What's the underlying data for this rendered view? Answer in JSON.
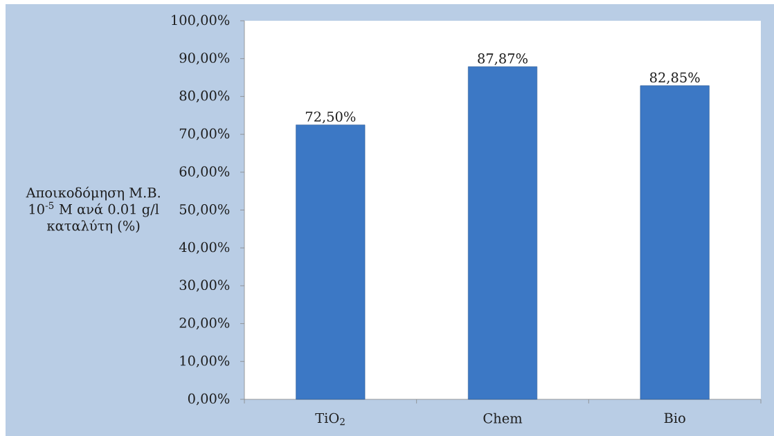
{
  "chart_data": {
    "type": "bar",
    "categories": [
      "TiO$_{2}$",
      "Chem",
      "Bio"
    ],
    "values": [
      72.5,
      87.87,
      82.85
    ],
    "value_labels": [
      "72,50%",
      "87,87%",
      "82,85%"
    ],
    "color": "#3c78c5",
    "ylabel": "Αποικοδόμηση Μ.Β. 10$^{-5}$ M ανά 0.01 g/l καταλύτη (%)",
    "ylim": [
      0,
      100
    ],
    "yticks": [
      {
        "value": 0,
        "label": "0,00%"
      },
      {
        "value": 10,
        "label": "10,00%"
      },
      {
        "value": 20,
        "label": "20,00%"
      },
      {
        "value": 30,
        "label": "30,00%"
      },
      {
        "value": 40,
        "label": "40,00%"
      },
      {
        "value": 50,
        "label": "50,00%"
      },
      {
        "value": 60,
        "label": "60,00%"
      },
      {
        "value": 70,
        "label": "70,00%"
      },
      {
        "value": 80,
        "label": "80,00%"
      },
      {
        "value": 90,
        "label": "90,00%"
      },
      {
        "value": 100,
        "label": "100,00%"
      }
    ]
  }
}
